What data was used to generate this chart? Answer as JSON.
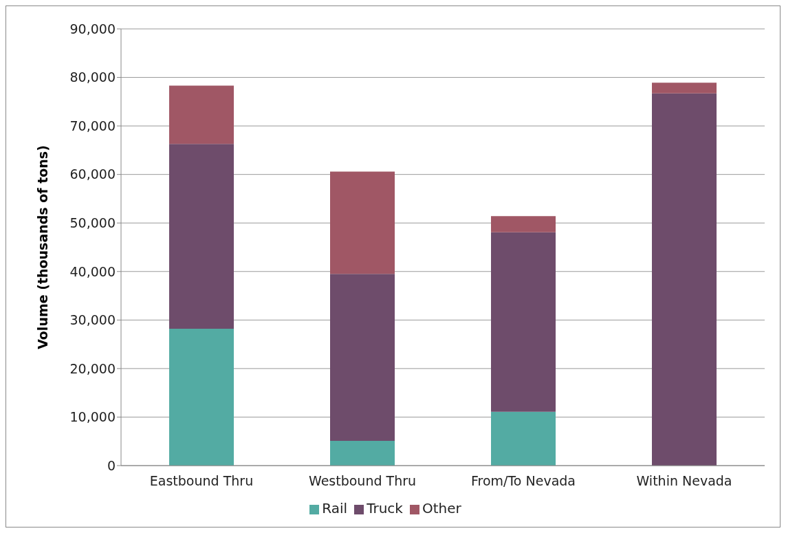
{
  "chart_data": {
    "type": "bar",
    "stacked": true,
    "ylabel": "Volume (thousands of tons)",
    "categories": [
      "Eastbound Thru",
      "Westbound Thru",
      "From/To Nevada",
      "Within Nevada"
    ],
    "series": [
      {
        "name": "Rail",
        "color": "#53aba3",
        "values": [
          28200,
          5100,
          11100,
          0
        ]
      },
      {
        "name": "Truck",
        "color": "#6e4c6b",
        "values": [
          38100,
          34400,
          37000,
          76700
        ]
      },
      {
        "name": "Other",
        "color": "#a05765",
        "values": [
          12000,
          21100,
          3300,
          2200
        ]
      }
    ],
    "ylim": [
      0,
      90000
    ],
    "yticks": [
      0,
      {
        "value": 10000,
        "label": "10,000"
      },
      {
        "value": 20000,
        "label": "20,000"
      },
      {
        "value": 30000,
        "label": "30,000"
      },
      {
        "value": 40000,
        "label": "40,000"
      },
      {
        "value": 50000,
        "label": "50,000"
      },
      {
        "value": 60000,
        "label": "60,000"
      },
      {
        "value": 70000,
        "label": "70,000"
      },
      {
        "value": 80000,
        "label": "80,000"
      },
      {
        "value": 90000,
        "label": "90,000"
      }
    ],
    "grid": "y",
    "legend": "bottom"
  }
}
